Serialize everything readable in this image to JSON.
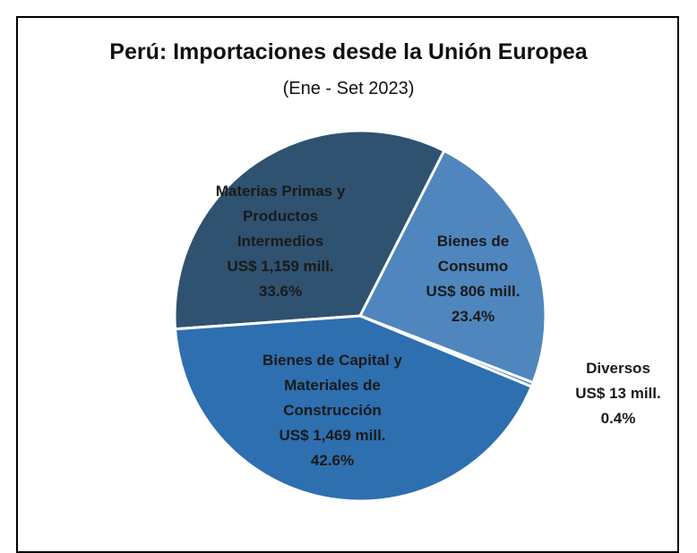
{
  "chart_data": {
    "type": "pie",
    "title": "Perú: Importaciones desde la Unión Europea",
    "subtitle": "(Ene - Set 2023)",
    "categories": [
      "Materias Primas y Productos Intermedios",
      "Bienes de Consumo",
      "Diversos",
      "Bienes de Capital y Materiales de Construcción"
    ],
    "values": [
      1159,
      806,
      13,
      1469
    ],
    "value_labels": [
      "US$ 1,159 mill.",
      "US$ 806 mill.",
      "US$ 13 mill.",
      "US$ 1,469 mill."
    ],
    "percent_labels": [
      "33.6%",
      "23.4%",
      "0.4%",
      "42.6%"
    ],
    "colors": [
      "#2f5270",
      "#4f86bd",
      "#5b90c6",
      "#2e6fb0"
    ]
  }
}
